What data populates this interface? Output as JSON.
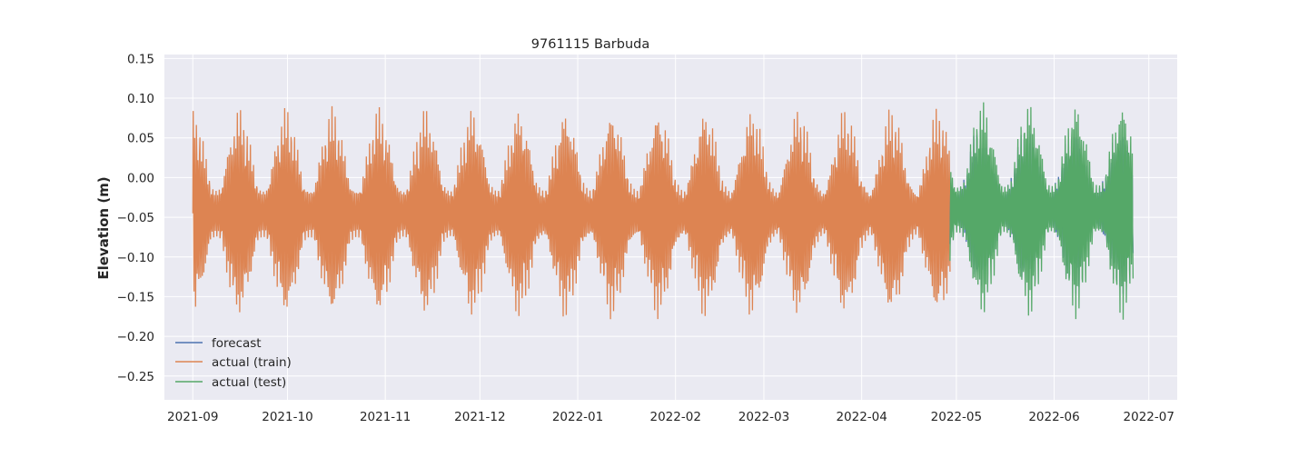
{
  "chart_data": {
    "type": "line",
    "title": "9761115 Barbuda",
    "xlabel": "",
    "ylabel": "Elevation (m)",
    "grid": true,
    "legend_position": "lower-left",
    "xlim": [
      "2021-08-23",
      "2022-07-10"
    ],
    "ylim": [
      -0.28,
      0.155
    ],
    "x_ticks": [
      "2021-09",
      "2021-10",
      "2021-11",
      "2021-12",
      "2022-01",
      "2022-02",
      "2022-03",
      "2022-04",
      "2022-05",
      "2022-06",
      "2022-07"
    ],
    "y_ticks": [
      0.15,
      0.1,
      0.05,
      0.0,
      -0.05,
      -0.1,
      -0.15,
      -0.2,
      -0.25
    ],
    "y_tick_labels": [
      "0.15",
      "0.10",
      "0.05",
      "0.00",
      "−0.05",
      "−0.10",
      "−0.15",
      "−0.20",
      "−0.25"
    ],
    "series": [
      {
        "name": "forecast",
        "color": "#4c72b0",
        "start": "2022-04-29",
        "end": "2022-06-26",
        "mean": -0.04,
        "amp_max": 0.11,
        "amp_min": 0.025
      },
      {
        "name": "actual (train)",
        "color": "#dd8452",
        "start": "2021-09-01",
        "end": "2022-04-29",
        "mean": -0.045,
        "amp_max": 0.135,
        "amp_min": 0.03
      },
      {
        "name": "actual (test)",
        "color": "#55a868",
        "start": "2022-04-29",
        "end": "2022-06-26",
        "mean": -0.04,
        "amp_max": 0.14,
        "amp_min": 0.03
      }
    ]
  }
}
